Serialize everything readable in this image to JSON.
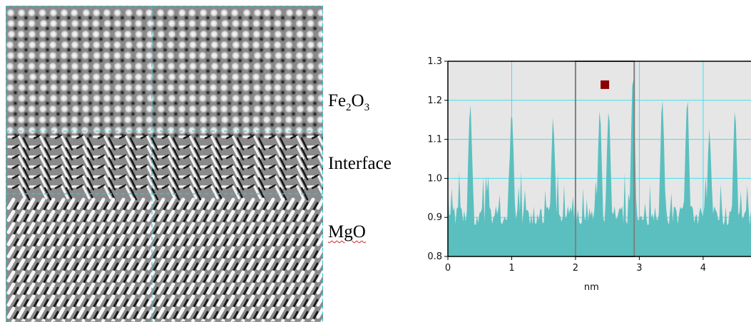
{
  "micrograph": {
    "regions": [
      {
        "label_parts": [
          "Fe",
          "2",
          "O",
          "3"
        ]
      },
      {
        "label": "Interface"
      },
      {
        "label": "MgO"
      }
    ],
    "guide_line_color": "#36c8d6"
  },
  "chart_data": {
    "type": "area",
    "xlabel": "nm",
    "ylim": [
      0.8,
      1.3
    ],
    "xlim": [
      0,
      4.75
    ],
    "x_ticks": [
      "0",
      "1",
      "2",
      "3",
      "4"
    ],
    "y_ticks": [
      "0.8",
      "0.9",
      "1.0",
      "1.1",
      "1.2",
      "1.3"
    ],
    "grid": true,
    "fill_color": "#5bbfbf",
    "background_color": "#e6e6e6",
    "grid_color": "#40e0f0",
    "selection": {
      "x_range": [
        2.0,
        2.92
      ]
    },
    "marker": {
      "x": 2.46,
      "y": 1.24,
      "color": "#8b0000"
    },
    "peaks": [
      {
        "x": 0.35,
        "y": 1.2
      },
      {
        "x": 1.0,
        "y": 1.18
      },
      {
        "x": 1.65,
        "y": 1.15
      },
      {
        "x": 2.38,
        "y": 1.17
      },
      {
        "x": 2.52,
        "y": 1.19
      },
      {
        "x": 2.9,
        "y": 1.26
      },
      {
        "x": 3.36,
        "y": 1.21
      },
      {
        "x": 3.75,
        "y": 1.2
      },
      {
        "x": 4.1,
        "y": 1.12
      },
      {
        "x": 4.5,
        "y": 1.16
      }
    ]
  }
}
